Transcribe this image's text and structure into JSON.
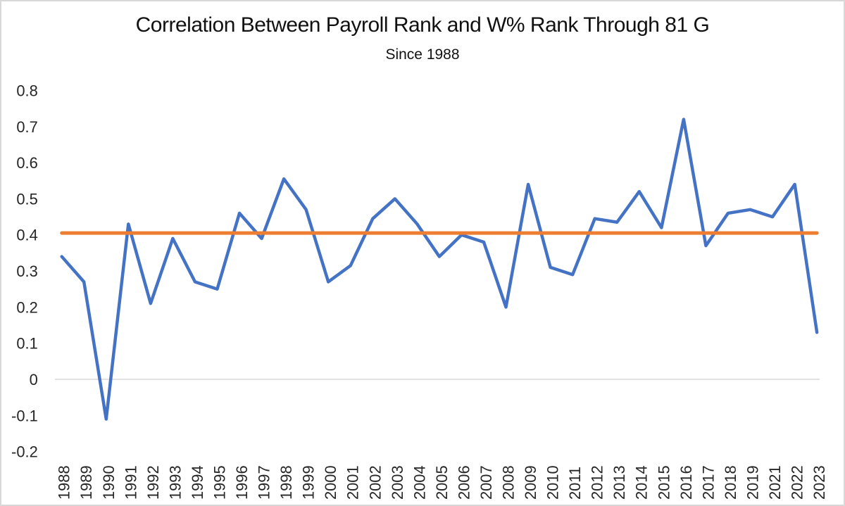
{
  "chart": {
    "title": "Correlation Between Payroll Rank and W% Rank Through 81 G",
    "subtitle": "Since 1988"
  },
  "chart_data": {
    "type": "line",
    "title": "Correlation Between Payroll Rank and W% Rank Through 81 G",
    "subtitle": "Since 1988",
    "x": [
      "1988",
      "1989",
      "1990",
      "1991",
      "1992",
      "1993",
      "1994",
      "1995",
      "1996",
      "1997",
      "1998",
      "1999",
      "2000",
      "2001",
      "2002",
      "2003",
      "2004",
      "2005",
      "2006",
      "2007",
      "2008",
      "2009",
      "2010",
      "2011",
      "2012",
      "2013",
      "2014",
      "2015",
      "2016",
      "2017",
      "2018",
      "2019",
      "2021",
      "2022",
      "2023"
    ],
    "series": [
      {
        "name": "correlation-by-year",
        "color": "#4472C4",
        "values": [
          0.34,
          0.27,
          -0.11,
          0.43,
          0.21,
          0.39,
          0.27,
          0.25,
          0.46,
          0.39,
          0.555,
          0.47,
          0.27,
          0.315,
          0.445,
          0.5,
          0.43,
          0.34,
          0.4,
          0.38,
          0.2,
          0.54,
          0.31,
          0.29,
          0.445,
          0.435,
          0.52,
          0.42,
          0.72,
          0.37,
          0.46,
          0.47,
          0.45,
          0.54,
          0.13
        ]
      },
      {
        "name": "average-line",
        "color": "#ED7D31",
        "constant": 0.405
      }
    ],
    "ylim": [
      -0.2,
      0.8
    ],
    "y_ticks": [
      0.8,
      0.7,
      0.6,
      0.5,
      0.4,
      0.3,
      0.2,
      0.1,
      0,
      -0.1,
      -0.2
    ],
    "xlabel": "",
    "ylabel": "",
    "grid": "zero-line-only",
    "legend": "none",
    "x_label_rotation": -90
  },
  "colors": {
    "line": "#4472C4",
    "average": "#ED7D31",
    "zero_gridline": "#D9D9D9",
    "frame_border": "#D8D8D8",
    "axis_text": "#262626",
    "title_text": "#111111",
    "background": "#FFFFFF"
  }
}
